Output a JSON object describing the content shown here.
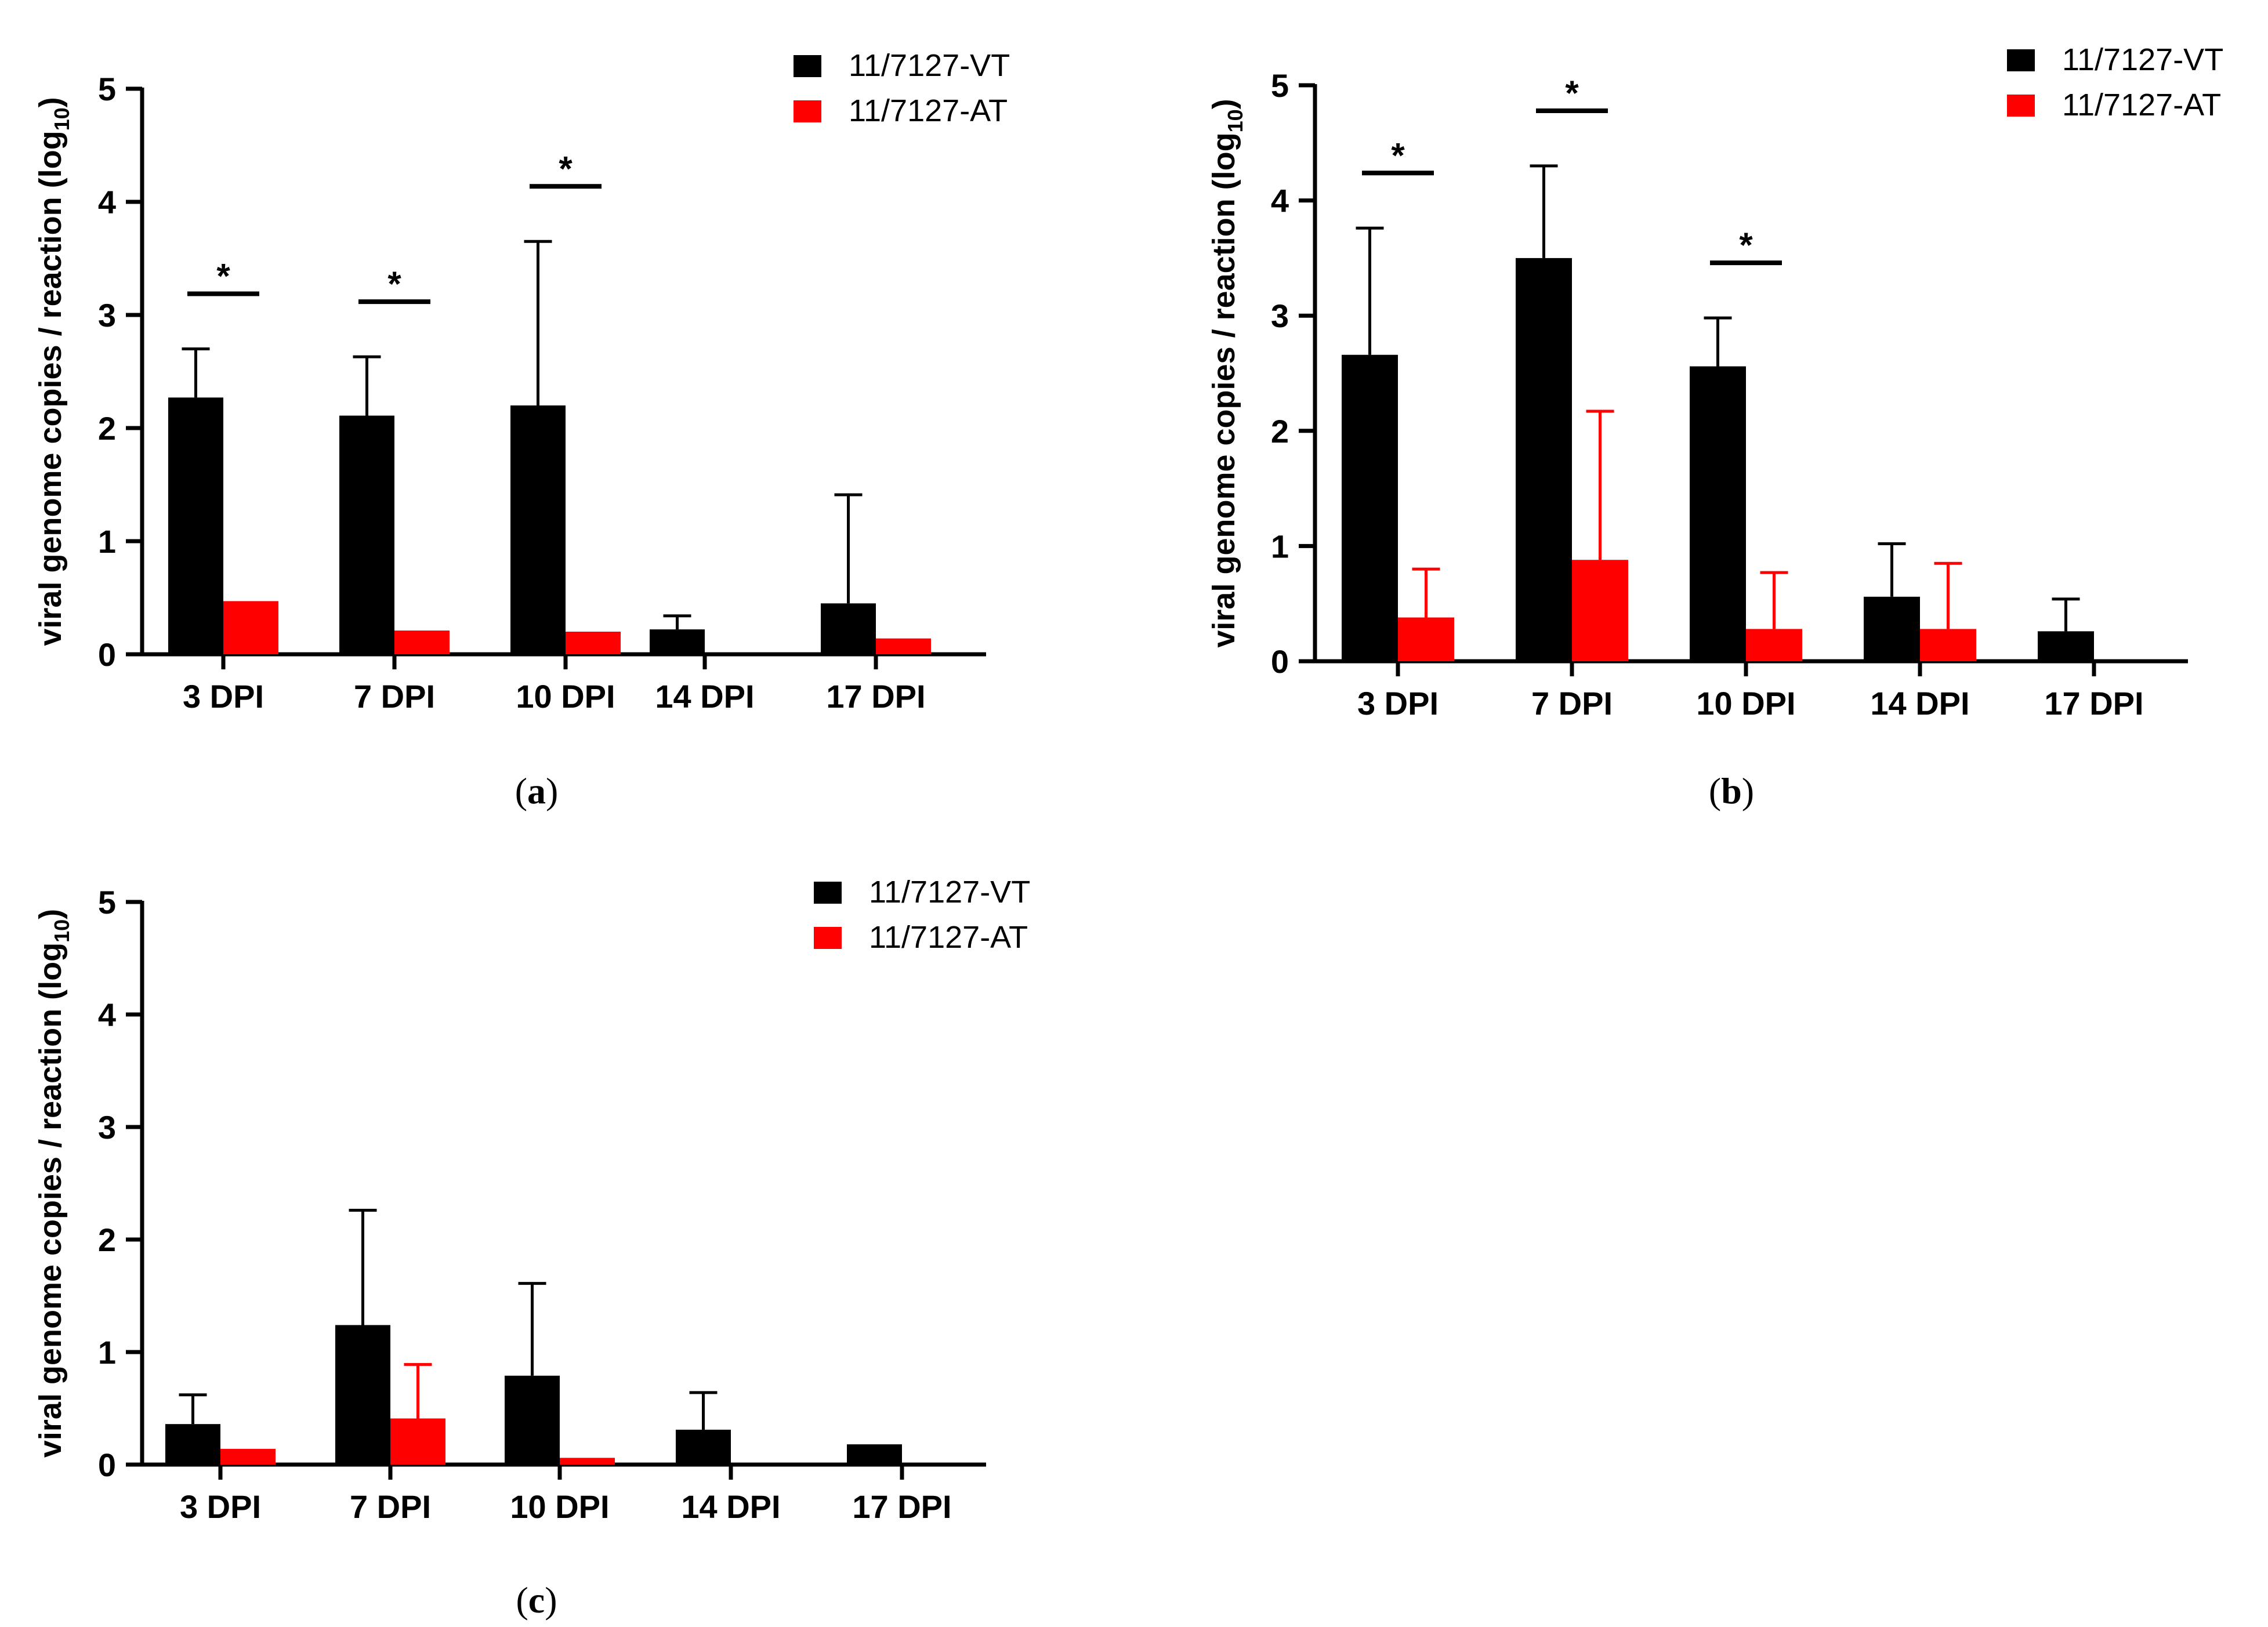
{
  "colors": {
    "vt": "#000000",
    "at": "#ff0000",
    "axis": "#000000"
  },
  "chart_data": [
    {
      "type": "bar",
      "panel_label": "(a)",
      "panel_letter": "a",
      "ylabel": "viral genome copies / reaction (log",
      "ylabel_sub": "10",
      "ylabel_close": ")",
      "ylim": [
        0,
        5
      ],
      "yticks": [
        "0",
        "1",
        "2",
        "3",
        "4",
        "5"
      ],
      "categories": [
        "3 DPI",
        "7 DPI",
        "10 DPI",
        "14 DPI",
        "17 DPI"
      ],
      "series": [
        {
          "name": "11/7127-VT",
          "values": [
            2.27,
            2.11,
            2.2,
            0.22,
            0.45
          ],
          "errors": [
            0.43,
            0.52,
            1.45,
            0.12,
            0.96
          ]
        },
        {
          "name": "11/7127-AT",
          "values": [
            0.47,
            0.21,
            0.2,
            0,
            0.14
          ],
          "errors": [
            0,
            0,
            0,
            0,
            0
          ]
        }
      ],
      "significance": [
        {
          "category": 0,
          "label": "*"
        },
        {
          "category": 1,
          "label": "*"
        },
        {
          "category": 2,
          "label": "*"
        }
      ]
    },
    {
      "type": "bar",
      "panel_label": "(b)",
      "panel_letter": "b",
      "ylabel": "viral genome copies / reaction (log",
      "ylabel_sub": "10",
      "ylabel_close": ")",
      "ylim": [
        0,
        5
      ],
      "yticks": [
        "0",
        "1",
        "2",
        "3",
        "4",
        "5"
      ],
      "categories": [
        "3 DPI",
        "7 DPI",
        "10 DPI",
        "14 DPI",
        "17 DPI"
      ],
      "series": [
        {
          "name": "11/7127-VT",
          "values": [
            2.66,
            3.5,
            2.56,
            0.56,
            0.26
          ],
          "errors": [
            1.1,
            0.8,
            0.42,
            0.46,
            0.28
          ]
        },
        {
          "name": "11/7127-AT",
          "values": [
            0.38,
            0.88,
            0.28,
            0.28,
            0
          ],
          "errors": [
            0.42,
            1.29,
            0.49,
            0.57,
            0
          ]
        }
      ],
      "significance": [
        {
          "category": 0,
          "label": "*"
        },
        {
          "category": 1,
          "label": "*"
        },
        {
          "category": 2,
          "label": "*"
        }
      ]
    },
    {
      "type": "bar",
      "panel_label": "(c)",
      "panel_letter": "c",
      "ylabel": "viral genome copies / reaction (log",
      "ylabel_sub": "10",
      "ylabel_close": ")",
      "ylim": [
        0,
        5
      ],
      "yticks": [
        "0",
        "1",
        "2",
        "3",
        "4",
        "5"
      ],
      "categories": [
        "3 DPI",
        "7 DPI",
        "10 DPI",
        "14 DPI",
        "17 DPI"
      ],
      "series": [
        {
          "name": "11/7127-VT",
          "values": [
            0.36,
            1.24,
            0.79,
            0.31,
            0.18
          ],
          "errors": [
            0.26,
            1.02,
            0.82,
            0.33,
            0
          ]
        },
        {
          "name": "11/7127-AT",
          "values": [
            0.14,
            0.41,
            0.06,
            0,
            0
          ],
          "errors": [
            0,
            0.48,
            0,
            0,
            0
          ]
        }
      ],
      "significance": []
    }
  ]
}
